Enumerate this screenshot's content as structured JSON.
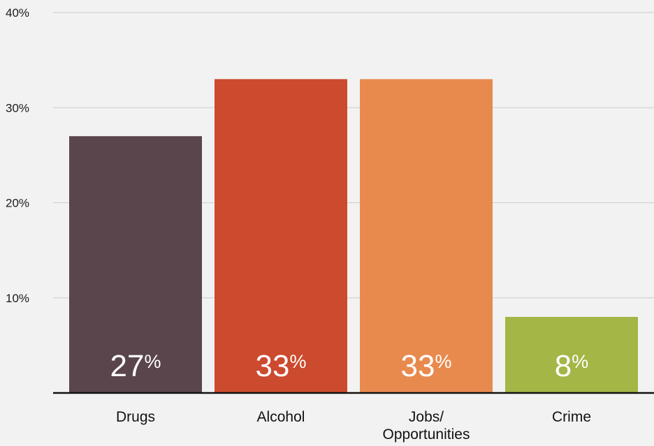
{
  "chart_data": {
    "type": "bar",
    "categories": [
      "Drugs",
      "Alcohol",
      "Jobs/ Opportunities",
      "Crime"
    ],
    "category_lines": [
      [
        "Drugs"
      ],
      [
        "Alcohol"
      ],
      [
        "Jobs/",
        "Opportunities"
      ],
      [
        "Crime"
      ]
    ],
    "values": [
      27,
      33,
      33,
      8
    ],
    "value_labels": [
      "27",
      "33",
      "33",
      "8"
    ],
    "value_suffix": "%",
    "colors": [
      "#5b454d",
      "#cc4a2d",
      "#e88a4e",
      "#a3b646"
    ],
    "ylim": [
      0,
      40
    ],
    "yticks": [
      10,
      20,
      30,
      40
    ],
    "ytick_labels": [
      "10%",
      "20%",
      "30%",
      "40%"
    ],
    "grid": true,
    "title": "",
    "xlabel": "",
    "ylabel": ""
  }
}
